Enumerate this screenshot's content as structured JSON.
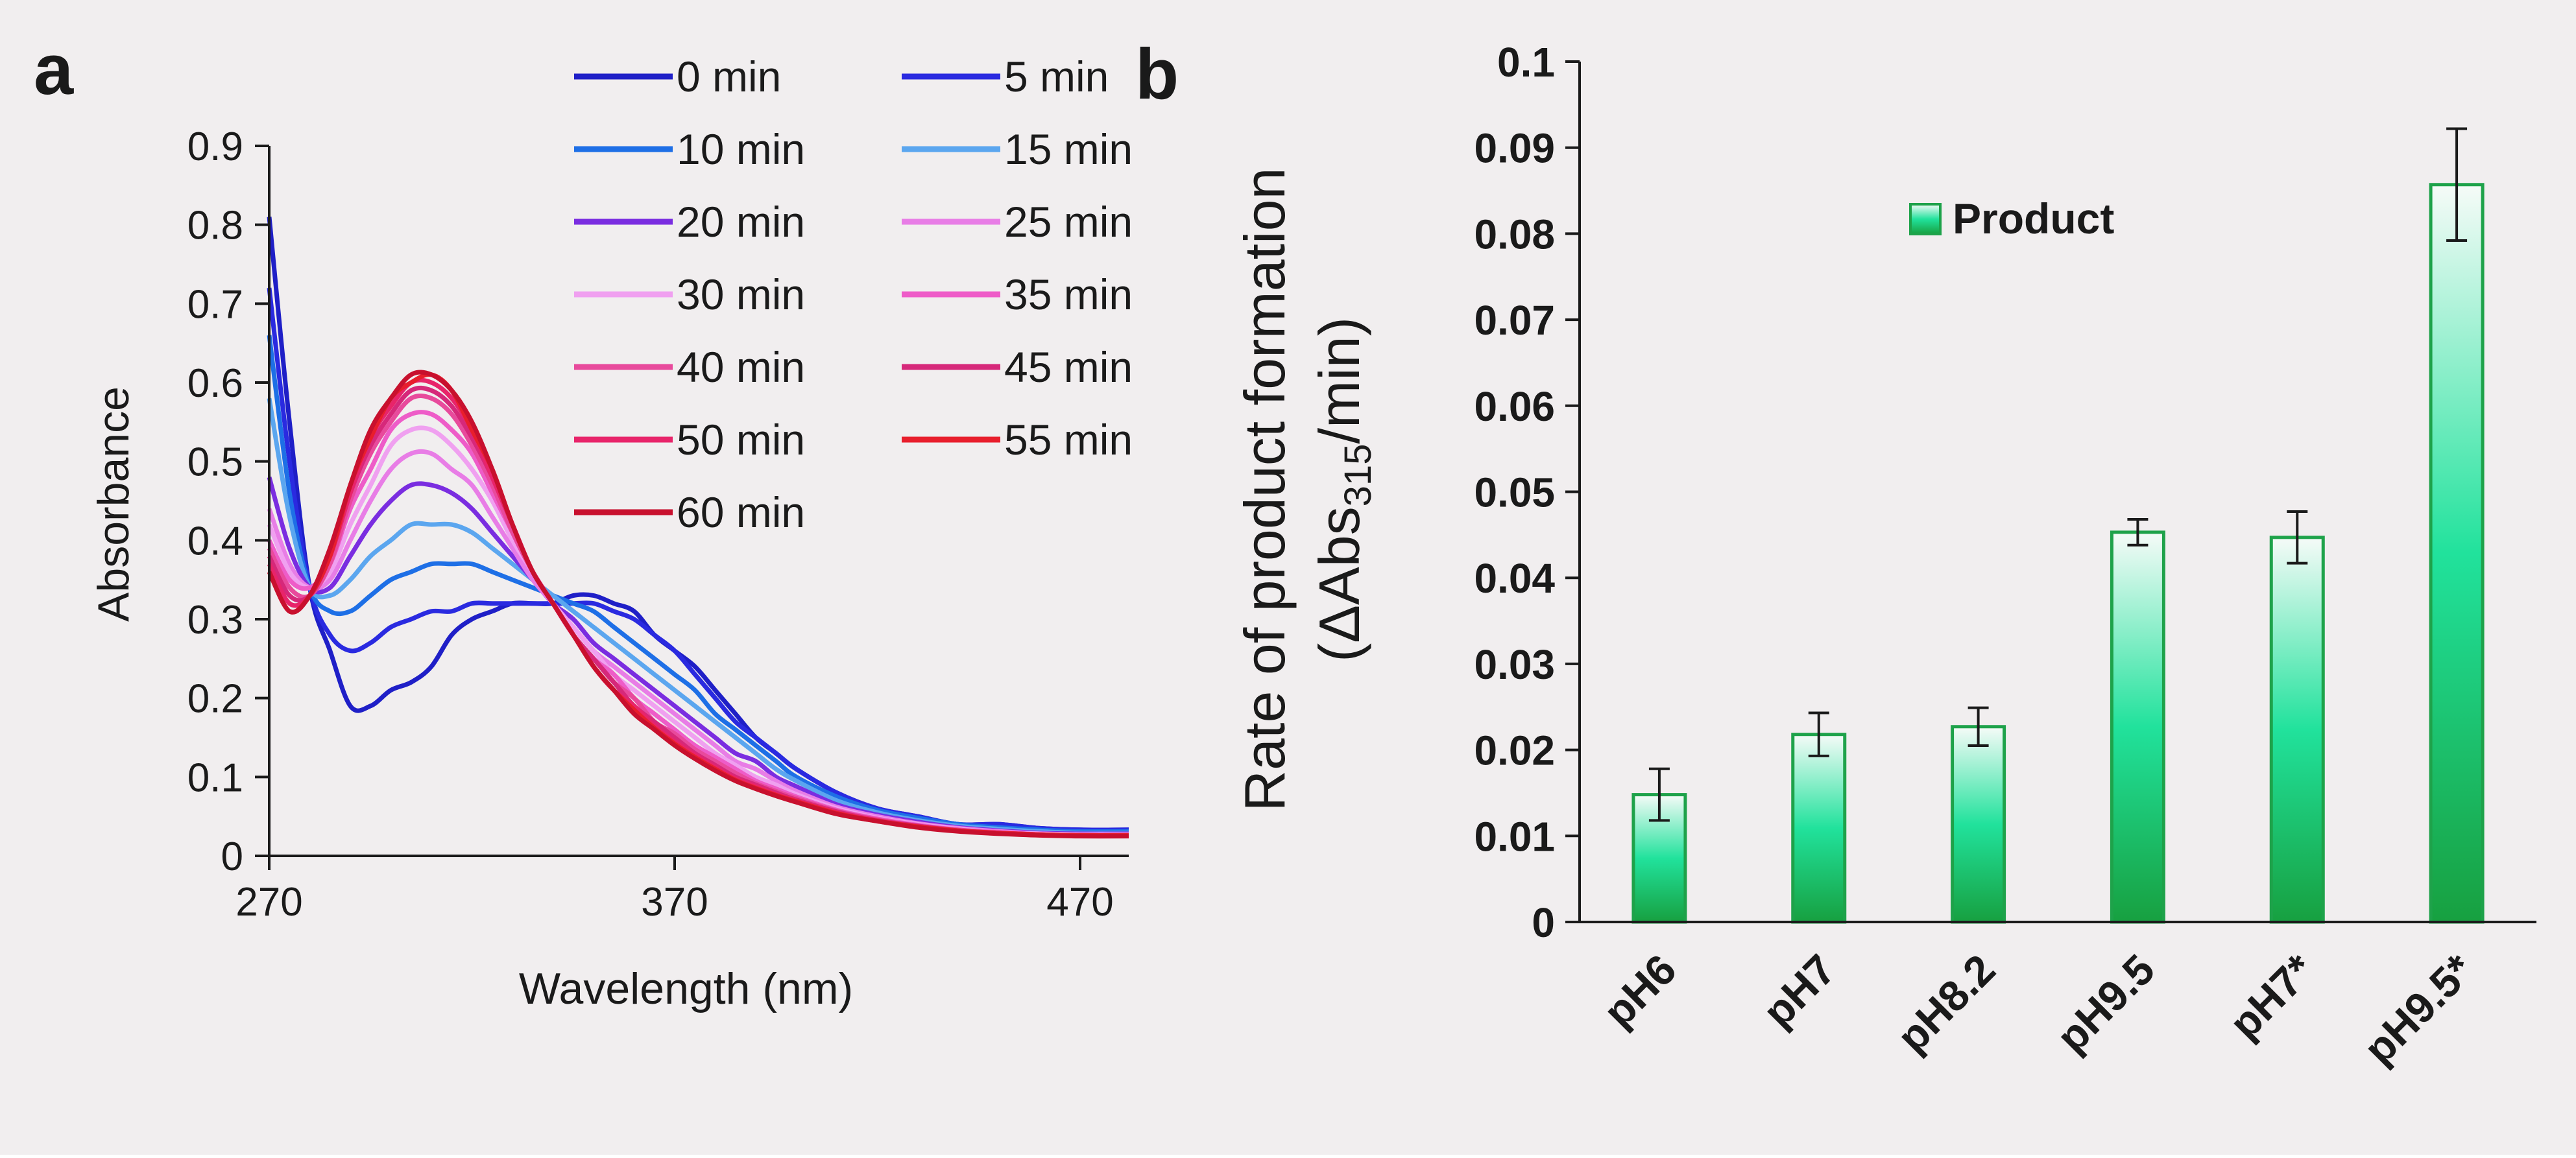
{
  "chart_data": [
    {
      "panel": "a",
      "type": "line",
      "xlabel": "Wavelength (nm)",
      "ylabel": "Absorbance",
      "xlim": [
        270,
        482
      ],
      "ylim": [
        0,
        0.9
      ],
      "xticks": [
        "270",
        "370",
        "470"
      ],
      "yticks": [
        "0",
        "0.1",
        "0.2",
        "0.3",
        "0.4",
        "0.5",
        "0.6",
        "0.7",
        "0.8",
        "0.9"
      ],
      "x": [
        270,
        275,
        280,
        285,
        290,
        295,
        300,
        305,
        310,
        315,
        320,
        325,
        330,
        335,
        340,
        345,
        350,
        355,
        360,
        365,
        370,
        375,
        380,
        385,
        390,
        395,
        400,
        410,
        420,
        430,
        440,
        450,
        460,
        470,
        482
      ],
      "series": [
        {
          "name": "0 min",
          "color": "#1f1fc7",
          "values": [
            0.81,
            0.55,
            0.34,
            0.26,
            0.19,
            0.19,
            0.21,
            0.22,
            0.24,
            0.28,
            0.3,
            0.31,
            0.32,
            0.32,
            0.32,
            0.33,
            0.33,
            0.32,
            0.31,
            0.28,
            0.26,
            0.24,
            0.21,
            0.18,
            0.15,
            0.13,
            0.11,
            0.08,
            0.06,
            0.05,
            0.04,
            0.04,
            0.035,
            0.033,
            0.033
          ]
        },
        {
          "name": "5 min",
          "color": "#2a2ae0",
          "values": [
            0.72,
            0.5,
            0.34,
            0.28,
            0.26,
            0.27,
            0.29,
            0.3,
            0.31,
            0.31,
            0.32,
            0.32,
            0.32,
            0.32,
            0.32,
            0.32,
            0.32,
            0.31,
            0.3,
            0.28,
            0.26,
            0.23,
            0.2,
            0.17,
            0.15,
            0.13,
            0.11,
            0.08,
            0.06,
            0.05,
            0.04,
            0.04,
            0.035,
            0.033,
            0.033
          ]
        },
        {
          "name": "10 min",
          "color": "#1e6fe6",
          "values": [
            0.66,
            0.46,
            0.34,
            0.31,
            0.31,
            0.33,
            0.35,
            0.36,
            0.37,
            0.37,
            0.37,
            0.36,
            0.35,
            0.34,
            0.33,
            0.32,
            0.31,
            0.29,
            0.27,
            0.25,
            0.23,
            0.21,
            0.18,
            0.16,
            0.14,
            0.12,
            0.1,
            0.075,
            0.058,
            0.048,
            0.04,
            0.036,
            0.033,
            0.031,
            0.031
          ]
        },
        {
          "name": "15 min",
          "color": "#5ba6ef",
          "values": [
            0.58,
            0.43,
            0.34,
            0.33,
            0.35,
            0.38,
            0.4,
            0.42,
            0.42,
            0.42,
            0.41,
            0.39,
            0.37,
            0.35,
            0.33,
            0.31,
            0.29,
            0.27,
            0.25,
            0.23,
            0.21,
            0.19,
            0.17,
            0.15,
            0.13,
            0.11,
            0.095,
            0.07,
            0.055,
            0.045,
            0.038,
            0.034,
            0.031,
            0.029,
            0.029
          ]
        },
        {
          "name": "20 min",
          "color": "#7a2de0",
          "values": [
            0.48,
            0.39,
            0.34,
            0.34,
            0.38,
            0.42,
            0.45,
            0.47,
            0.47,
            0.46,
            0.44,
            0.41,
            0.38,
            0.35,
            0.32,
            0.3,
            0.27,
            0.25,
            0.23,
            0.21,
            0.19,
            0.17,
            0.15,
            0.13,
            0.12,
            0.1,
            0.088,
            0.065,
            0.052,
            0.043,
            0.036,
            0.032,
            0.029,
            0.028,
            0.028
          ]
        },
        {
          "name": "25 min",
          "color": "#e87de6",
          "values": [
            0.44,
            0.37,
            0.34,
            0.35,
            0.4,
            0.45,
            0.49,
            0.51,
            0.51,
            0.49,
            0.47,
            0.43,
            0.39,
            0.35,
            0.32,
            0.29,
            0.26,
            0.24,
            0.22,
            0.2,
            0.18,
            0.16,
            0.14,
            0.12,
            0.11,
            0.095,
            0.082,
            0.062,
            0.05,
            0.041,
            0.035,
            0.031,
            0.028,
            0.027,
            0.027
          ]
        },
        {
          "name": "30 min",
          "color": "#f0a0f0",
          "values": [
            0.42,
            0.36,
            0.34,
            0.36,
            0.42,
            0.47,
            0.52,
            0.54,
            0.54,
            0.52,
            0.49,
            0.45,
            0.4,
            0.36,
            0.32,
            0.29,
            0.26,
            0.23,
            0.21,
            0.19,
            0.17,
            0.15,
            0.13,
            0.115,
            0.1,
            0.09,
            0.078,
            0.06,
            0.048,
            0.04,
            0.034,
            0.03,
            0.028,
            0.027,
            0.027
          ]
        },
        {
          "name": "35 min",
          "color": "#ee5cc8",
          "values": [
            0.4,
            0.35,
            0.34,
            0.37,
            0.44,
            0.49,
            0.54,
            0.56,
            0.56,
            0.54,
            0.51,
            0.46,
            0.41,
            0.36,
            0.32,
            0.28,
            0.25,
            0.23,
            0.2,
            0.18,
            0.16,
            0.14,
            0.125,
            0.11,
            0.095,
            0.085,
            0.075,
            0.058,
            0.047,
            0.039,
            0.033,
            0.03,
            0.027,
            0.026,
            0.026
          ]
        },
        {
          "name": "40 min",
          "color": "#e84a9c",
          "values": [
            0.39,
            0.34,
            0.33,
            0.37,
            0.45,
            0.51,
            0.55,
            0.58,
            0.58,
            0.56,
            0.52,
            0.47,
            0.41,
            0.36,
            0.32,
            0.28,
            0.25,
            0.22,
            0.2,
            0.17,
            0.155,
            0.135,
            0.12,
            0.105,
            0.092,
            0.082,
            0.073,
            0.057,
            0.046,
            0.038,
            0.033,
            0.029,
            0.027,
            0.026,
            0.026
          ]
        },
        {
          "name": "45 min",
          "color": "#d6287a",
          "values": [
            0.38,
            0.33,
            0.33,
            0.38,
            0.46,
            0.52,
            0.56,
            0.59,
            0.59,
            0.57,
            0.53,
            0.48,
            0.42,
            0.36,
            0.32,
            0.28,
            0.25,
            0.22,
            0.19,
            0.17,
            0.15,
            0.13,
            0.115,
            0.1,
            0.09,
            0.08,
            0.071,
            0.056,
            0.045,
            0.038,
            0.032,
            0.029,
            0.027,
            0.026,
            0.026
          ]
        },
        {
          "name": "50 min",
          "color": "#e8246a",
          "values": [
            0.37,
            0.32,
            0.33,
            0.38,
            0.46,
            0.53,
            0.57,
            0.6,
            0.6,
            0.58,
            0.54,
            0.48,
            0.42,
            0.36,
            0.32,
            0.28,
            0.24,
            0.21,
            0.19,
            0.165,
            0.145,
            0.128,
            0.112,
            0.098,
            0.088,
            0.078,
            0.07,
            0.055,
            0.045,
            0.037,
            0.032,
            0.029,
            0.027,
            0.026,
            0.026
          ]
        },
        {
          "name": "55 min",
          "color": "#e81e2c",
          "values": [
            0.36,
            0.31,
            0.33,
            0.38,
            0.47,
            0.53,
            0.58,
            0.6,
            0.61,
            0.59,
            0.54,
            0.49,
            0.42,
            0.36,
            0.32,
            0.28,
            0.24,
            0.21,
            0.185,
            0.162,
            0.142,
            0.125,
            0.11,
            0.096,
            0.086,
            0.077,
            0.069,
            0.054,
            0.044,
            0.037,
            0.032,
            0.029,
            0.027,
            0.026,
            0.026
          ]
        },
        {
          "name": "60 min",
          "color": "#c8102e",
          "values": [
            0.36,
            0.31,
            0.33,
            0.39,
            0.47,
            0.54,
            0.58,
            0.61,
            0.61,
            0.59,
            0.55,
            0.49,
            0.42,
            0.36,
            0.32,
            0.28,
            0.24,
            0.21,
            0.18,
            0.16,
            0.14,
            0.123,
            0.108,
            0.095,
            0.085,
            0.076,
            0.068,
            0.053,
            0.044,
            0.036,
            0.031,
            0.028,
            0.026,
            0.025,
            0.025
          ]
        }
      ]
    },
    {
      "panel": "b",
      "type": "bar",
      "ylabel": "Rate of product formation",
      "ylabel2": {
        "open": "(ΔAbs",
        "sub": "315",
        "close": "/min)"
      },
      "ylim": [
        0,
        0.1
      ],
      "yticks": [
        "0",
        "0.01",
        "0.02",
        "0.03",
        "0.04",
        "0.05",
        "0.06",
        "0.07",
        "0.08",
        "0.09",
        "0.1"
      ],
      "legend": "Product",
      "categories": [
        "pH6",
        "pH7",
        "pH8.2",
        "pH9.5",
        "pH7*",
        "pH9.5*"
      ],
      "series": [
        {
          "name": "Product",
          "values": [
            0.0148,
            0.0218,
            0.0227,
            0.0453,
            0.0447,
            0.0857
          ],
          "errors": [
            0.003,
            0.0025,
            0.0022,
            0.0015,
            0.003,
            0.0065
          ]
        }
      ],
      "colors": {
        "top": "#f6fbf8",
        "mid": "#21e29c",
        "bottom": "#17a040",
        "edge": "#1ea24a"
      }
    }
  ],
  "panel_labels": {
    "a": "a",
    "b": "b"
  }
}
